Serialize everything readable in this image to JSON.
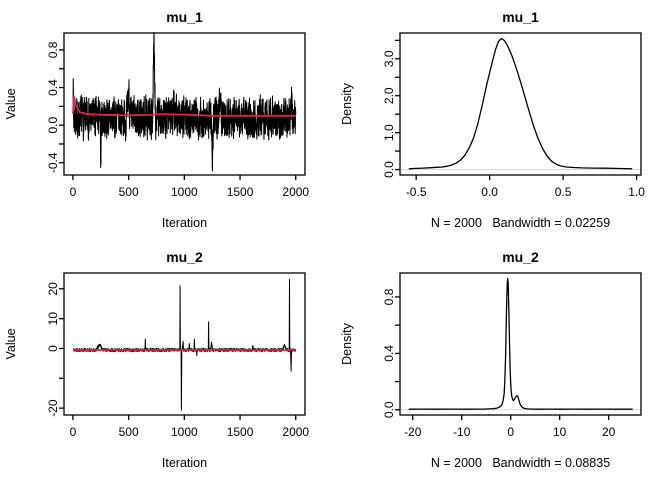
{
  "figure": {
    "background": "#ffffff",
    "trace_color": "#000000",
    "mean_line_color": "#e02446",
    "axis_color": "#000000",
    "zero_line_color": "#d9d9d9"
  },
  "chart_data": [
    {
      "id": "trace-mu-1",
      "type": "line",
      "title": "mu_1",
      "xlabel": "Iteration",
      "ylabel": "Value",
      "xlim": [
        -80,
        2083
      ],
      "ylim": [
        -0.53,
        0.98
      ],
      "xticks": {
        "values": [
          0,
          500,
          1000,
          1500,
          2000
        ],
        "labels": [
          "0",
          "500",
          "1000",
          "1500",
          "2000"
        ]
      },
      "yticks": {
        "values": [
          -0.4,
          -0.2,
          0,
          0.2,
          0.4,
          0.6,
          0.8
        ],
        "labels": [
          "-0.4",
          "",
          "0.0",
          "",
          "0.4",
          "",
          "0.8"
        ]
      },
      "series": [
        {
          "name": "mcmc-trace",
          "color": "#000000",
          "width": 1,
          "generator": {
            "n": 2000,
            "baseline": 0.08,
            "sd": 0.115,
            "rho": 0.3,
            "seed": 7,
            "spikes": [
              [
                2,
                0.4,
                4
              ],
              [
                250,
                -0.44,
                6
              ],
              [
                500,
                0.3,
                14
              ],
              [
                728,
                0.83,
                14
              ],
              [
                905,
                0.33,
                7
              ],
              [
                1253,
                -0.5,
                10
              ],
              [
                1320,
                0.32,
                12
              ],
              [
                1962,
                0.22,
                6
              ]
            ]
          }
        },
        {
          "name": "running-mean-line",
          "color": "#e02446",
          "width": 1.8,
          "points": [
            [
              1,
              0.12
            ],
            [
              8,
              0.31
            ],
            [
              25,
              0.22
            ],
            [
              60,
              0.14
            ],
            [
              120,
              0.12
            ],
            [
              250,
              0.11
            ],
            [
              500,
              0.105
            ],
            [
              700,
              0.108
            ],
            [
              780,
              0.118
            ],
            [
              1000,
              0.112
            ],
            [
              1250,
              0.1
            ],
            [
              1500,
              0.1
            ],
            [
              2000,
              0.1
            ]
          ]
        }
      ]
    },
    {
      "id": "density-mu-1",
      "type": "density",
      "title": "mu_1",
      "xlabel": "N = 2000   Bandwidth = 0.02259",
      "ylabel": "Density",
      "xlim": [
        -0.61,
        1.03
      ],
      "ylim": [
        -0.148,
        3.7
      ],
      "xticks": {
        "values": [
          -0.5,
          0,
          0.5,
          1
        ],
        "labels": [
          "-0.5",
          "0.0",
          "0.5",
          "1.0"
        ]
      },
      "yticks": {
        "values": [
          0,
          0.5,
          1,
          1.5,
          2,
          2.5,
          3,
          3.5
        ],
        "labels": [
          "0.0",
          "",
          "1.0",
          "",
          "2.0",
          "",
          "3.0",
          ""
        ]
      },
      "zero_line": {
        "y": 0
      },
      "series": [
        {
          "name": "density-curve",
          "color": "#000000",
          "width": 1.3,
          "points": [
            [
              -0.55,
              0.02
            ],
            [
              -0.5,
              0.03
            ],
            [
              -0.45,
              0.04
            ],
            [
              -0.4,
              0.05
            ],
            [
              -0.36,
              0.06
            ],
            [
              -0.32,
              0.07
            ],
            [
              -0.29,
              0.09
            ],
            [
              -0.26,
              0.12
            ],
            [
              -0.23,
              0.17
            ],
            [
              -0.2,
              0.25
            ],
            [
              -0.17,
              0.38
            ],
            [
              -0.14,
              0.58
            ],
            [
              -0.11,
              0.85
            ],
            [
              -0.08,
              1.25
            ],
            [
              -0.05,
              1.75
            ],
            [
              -0.02,
              2.3
            ],
            [
              0,
              2.62
            ],
            [
              0.02,
              2.95
            ],
            [
              0.04,
              3.25
            ],
            [
              0.06,
              3.47
            ],
            [
              0.08,
              3.55
            ],
            [
              0.1,
              3.5
            ],
            [
              0.12,
              3.37
            ],
            [
              0.15,
              3.1
            ],
            [
              0.18,
              2.76
            ],
            [
              0.21,
              2.38
            ],
            [
              0.24,
              1.97
            ],
            [
              0.27,
              1.56
            ],
            [
              0.3,
              1.17
            ],
            [
              0.33,
              0.84
            ],
            [
              0.36,
              0.57
            ],
            [
              0.39,
              0.37
            ],
            [
              0.42,
              0.23
            ],
            [
              0.45,
              0.15
            ],
            [
              0.48,
              0.1
            ],
            [
              0.52,
              0.07
            ],
            [
              0.57,
              0.055
            ],
            [
              0.63,
              0.045
            ],
            [
              0.7,
              0.04
            ],
            [
              0.78,
              0.035
            ],
            [
              0.85,
              0.03
            ],
            [
              0.92,
              0.025
            ],
            [
              0.97,
              0.02
            ]
          ]
        }
      ]
    },
    {
      "id": "trace-mu-2",
      "type": "line",
      "title": "mu_2",
      "xlabel": "Iteration",
      "ylabel": "Value",
      "xlim": [
        -80,
        2083
      ],
      "ylim": [
        -22.3,
        25.3
      ],
      "xticks": {
        "values": [
          0,
          500,
          1000,
          1500,
          2000
        ],
        "labels": [
          "0",
          "500",
          "1000",
          "1500",
          "2000"
        ]
      },
      "yticks": {
        "values": [
          -20,
          -10,
          0,
          10,
          20
        ],
        "labels": [
          "-20",
          "",
          "0",
          "10",
          "20"
        ]
      },
      "series": [
        {
          "name": "mcmc-trace",
          "color": "#000000",
          "width": 1,
          "generator": {
            "n": 2000,
            "baseline": -0.5,
            "sd": 0.28,
            "rho": 0.35,
            "seed": 11,
            "spikes": [
              [
                240,
                1.9,
                30
              ],
              [
                650,
                3.4,
                4
              ],
              [
                962,
                21.6,
                3
              ],
              [
                974,
                -20,
                3
              ],
              [
                988,
                3,
                6
              ],
              [
                1045,
                2.3,
                4
              ],
              [
                1090,
                3.3,
                3
              ],
              [
                1112,
                -1.6,
                3
              ],
              [
                1218,
                9.4,
                3
              ],
              [
                1245,
                2.7,
                8
              ],
              [
                1615,
                1.1,
                6
              ],
              [
                1900,
                1.5,
                18
              ],
              [
                1944,
                24,
                3
              ],
              [
                1958,
                -6.8,
                4
              ]
            ]
          }
        },
        {
          "name": "running-mean-line",
          "color": "#e02446",
          "width": 1.8,
          "points": [
            [
              1,
              -0.45
            ],
            [
              100,
              -0.52
            ],
            [
              600,
              -0.52
            ],
            [
              1200,
              -0.5
            ],
            [
              2000,
              -0.5
            ]
          ]
        }
      ]
    },
    {
      "id": "density-mu-2",
      "type": "density",
      "title": "mu_2",
      "xlabel": "N = 2000   Bandwidth = 0.08835",
      "ylabel": "Density",
      "xlim": [
        -22.6,
        26.6
      ],
      "ylim": [
        -0.037,
        0.97
      ],
      "xticks": {
        "values": [
          -20,
          -10,
          0,
          10,
          20
        ],
        "labels": [
          "-20",
          "-10",
          "0",
          "10",
          "20"
        ]
      },
      "yticks": {
        "values": [
          0,
          0.2,
          0.4,
          0.6,
          0.8
        ],
        "labels": [
          "0.0",
          "",
          "0.4",
          "",
          "0.8"
        ]
      },
      "zero_line": {
        "y": 0
      },
      "series": [
        {
          "name": "density-curve",
          "color": "#000000",
          "width": 1.3,
          "points": [
            [
              -20.8,
              0.004
            ],
            [
              -18,
              0.005
            ],
            [
              -15,
              0.004
            ],
            [
              -12,
              0.005
            ],
            [
              -9,
              0.004
            ],
            [
              -7,
              0.005
            ],
            [
              -5.5,
              0.005
            ],
            [
              -4.5,
              0.006
            ],
            [
              -3.5,
              0.008
            ],
            [
              -2.8,
              0.012
            ],
            [
              -2.3,
              0.018
            ],
            [
              -2,
              0.026
            ],
            [
              -1.75,
              0.04
            ],
            [
              -1.55,
              0.065
            ],
            [
              -1.35,
              0.11
            ],
            [
              -1.2,
              0.2
            ],
            [
              -1.05,
              0.38
            ],
            [
              -0.92,
              0.6
            ],
            [
              -0.8,
              0.8
            ],
            [
              -0.7,
              0.9
            ],
            [
              -0.62,
              0.93
            ],
            [
              -0.52,
              0.9
            ],
            [
              -0.42,
              0.78
            ],
            [
              -0.32,
              0.62
            ],
            [
              -0.22,
              0.45
            ],
            [
              -0.12,
              0.3
            ],
            [
              -0.02,
              0.2
            ],
            [
              0.1,
              0.13
            ],
            [
              0.25,
              0.09
            ],
            [
              0.4,
              0.072
            ],
            [
              0.55,
              0.065
            ],
            [
              0.7,
              0.07
            ],
            [
              0.9,
              0.082
            ],
            [
              1.1,
              0.095
            ],
            [
              1.3,
              0.1
            ],
            [
              1.5,
              0.09
            ],
            [
              1.7,
              0.065
            ],
            [
              1.9,
              0.042
            ],
            [
              2.1,
              0.028
            ],
            [
              2.4,
              0.016
            ],
            [
              2.8,
              0.009
            ],
            [
              3.4,
              0.006
            ],
            [
              4.5,
              0.005
            ],
            [
              6,
              0.004
            ],
            [
              8,
              0.005
            ],
            [
              10,
              0.004
            ],
            [
              13,
              0.005
            ],
            [
              16,
              0.004
            ],
            [
              19,
              0.005
            ],
            [
              22,
              0.004
            ],
            [
              24.9,
              0.004
            ]
          ]
        }
      ]
    }
  ]
}
